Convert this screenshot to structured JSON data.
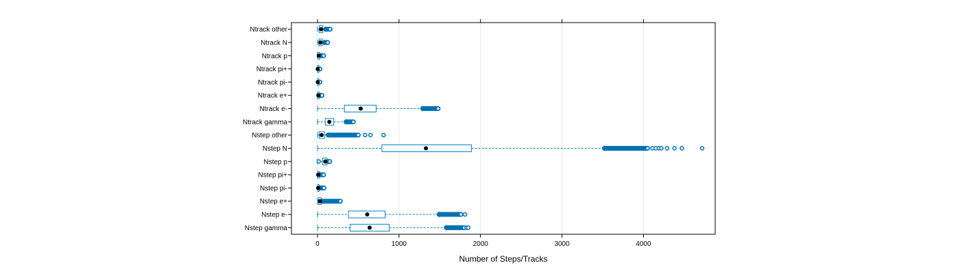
{
  "chart_data": {
    "type": "boxplot",
    "orientation": "horizontal",
    "title": "",
    "xlabel": "Number of Steps/Tracks",
    "ylabel": "",
    "xlim": [
      -320,
      4880
    ],
    "x_ticks": [
      0,
      1000,
      2000,
      3000,
      4000
    ],
    "x_tick_labels": [
      "0",
      "1000",
      "2000",
      "3000",
      "4000"
    ],
    "grid": "vertical-lines",
    "colors": {
      "box": "#0080C0",
      "whisker": "#0080C0",
      "outlier": "#0072B2",
      "median": "#000000",
      "grid": "#e6e6e6",
      "frame": "#000000"
    },
    "categories": [
      "Ntrack other",
      "Ntrack N",
      "Ntrack p",
      "Ntrack pi+",
      "Ntrack pi-",
      "Ntrack e+",
      "Ntrack e-",
      "Ntrack gamma",
      "Nstep other",
      "Nstep N",
      "Nstep p",
      "Nstep pi+",
      "Nstep pi-",
      "Nstep e+",
      "Nstep e-",
      "Nstep gamma"
    ],
    "boxes": [
      {
        "label": "Ntrack other",
        "whisker_low": 0,
        "q1": 22,
        "median": 44,
        "q3": 65,
        "whisker_high": 100,
        "outlier_min": 100,
        "outlier_max": 155,
        "far_outliers": []
      },
      {
        "label": "Ntrack N",
        "whisker_low": 0,
        "q1": 18,
        "median": 35,
        "q3": 58,
        "whisker_high": 85,
        "outlier_min": 85,
        "outlier_max": 125,
        "far_outliers": []
      },
      {
        "label": "Ntrack p",
        "whisker_low": 0,
        "q1": 5,
        "median": 15,
        "q3": 28,
        "whisker_high": 45,
        "outlier_min": 45,
        "outlier_max": 75,
        "far_outliers": []
      },
      {
        "label": "Ntrack pi+",
        "whisker_low": 0,
        "q1": 1,
        "median": 3,
        "q3": 7,
        "whisker_high": 12,
        "outlier_min": 12,
        "outlier_max": 30,
        "far_outliers": []
      },
      {
        "label": "Ntrack pi-",
        "whisker_low": 0,
        "q1": 1,
        "median": 3,
        "q3": 7,
        "whisker_high": 12,
        "outlier_min": 12,
        "outlier_max": 30,
        "far_outliers": []
      },
      {
        "label": "Ntrack e+",
        "whisker_low": 0,
        "q1": 3,
        "median": 10,
        "q3": 20,
        "whisker_high": 35,
        "outlier_min": 35,
        "outlier_max": 55,
        "far_outliers": []
      },
      {
        "label": "Ntrack e-",
        "whisker_low": 0,
        "q1": 330,
        "median": 530,
        "q3": 720,
        "whisker_high": 1290,
        "outlier_min": 1290,
        "outlier_max": 1480,
        "far_outliers": []
      },
      {
        "label": "Ntrack gamma",
        "whisker_low": 0,
        "q1": 95,
        "median": 145,
        "q3": 200,
        "whisker_high": 350,
        "outlier_min": 350,
        "outlier_max": 440,
        "far_outliers": []
      },
      {
        "label": "Nstep other",
        "whisker_low": 0,
        "q1": 20,
        "median": 50,
        "q3": 85,
        "whisker_high": 130,
        "outlier_min": 130,
        "outlier_max": 500,
        "far_outliers": [
          585,
          650,
          810
        ]
      },
      {
        "label": "Nstep N",
        "whisker_low": 0,
        "q1": 790,
        "median": 1330,
        "q3": 1890,
        "whisker_high": 3520,
        "outlier_min": 3520,
        "outlier_max": 4050,
        "far_outliers": [
          4110,
          4150,
          4190,
          4220,
          4290,
          4380,
          4470,
          4720
        ]
      },
      {
        "label": "Nstep p",
        "whisker_low": 0,
        "q1": 60,
        "median": 95,
        "q3": 115,
        "whisker_high": 120,
        "outlier_min": 120,
        "outlier_max": 150,
        "far_outliers": [
          15
        ]
      },
      {
        "label": "Nstep pi+",
        "whisker_low": 0,
        "q1": 2,
        "median": 8,
        "q3": 18,
        "whisker_high": 30,
        "outlier_min": 30,
        "outlier_max": 75,
        "far_outliers": []
      },
      {
        "label": "Nstep pi-",
        "whisker_low": 0,
        "q1": 2,
        "median": 8,
        "q3": 18,
        "whisker_high": 30,
        "outlier_min": 30,
        "outlier_max": 80,
        "far_outliers": []
      },
      {
        "label": "Nstep e+",
        "whisker_low": 0,
        "q1": 10,
        "median": 30,
        "q3": 45,
        "whisker_high": 55,
        "outlier_min": 55,
        "outlier_max": 280,
        "far_outliers": []
      },
      {
        "label": "Nstep e-",
        "whisker_low": 0,
        "q1": 380,
        "median": 610,
        "q3": 830,
        "whisker_high": 1490,
        "outlier_min": 1490,
        "outlier_max": 1760,
        "far_outliers": [
          1810
        ]
      },
      {
        "label": "Nstep gamma",
        "whisker_low": 0,
        "q1": 400,
        "median": 640,
        "q3": 880,
        "whisker_high": 1580,
        "outlier_min": 1580,
        "outlier_max": 1800,
        "far_outliers": [
          1830,
          1850
        ]
      }
    ]
  }
}
